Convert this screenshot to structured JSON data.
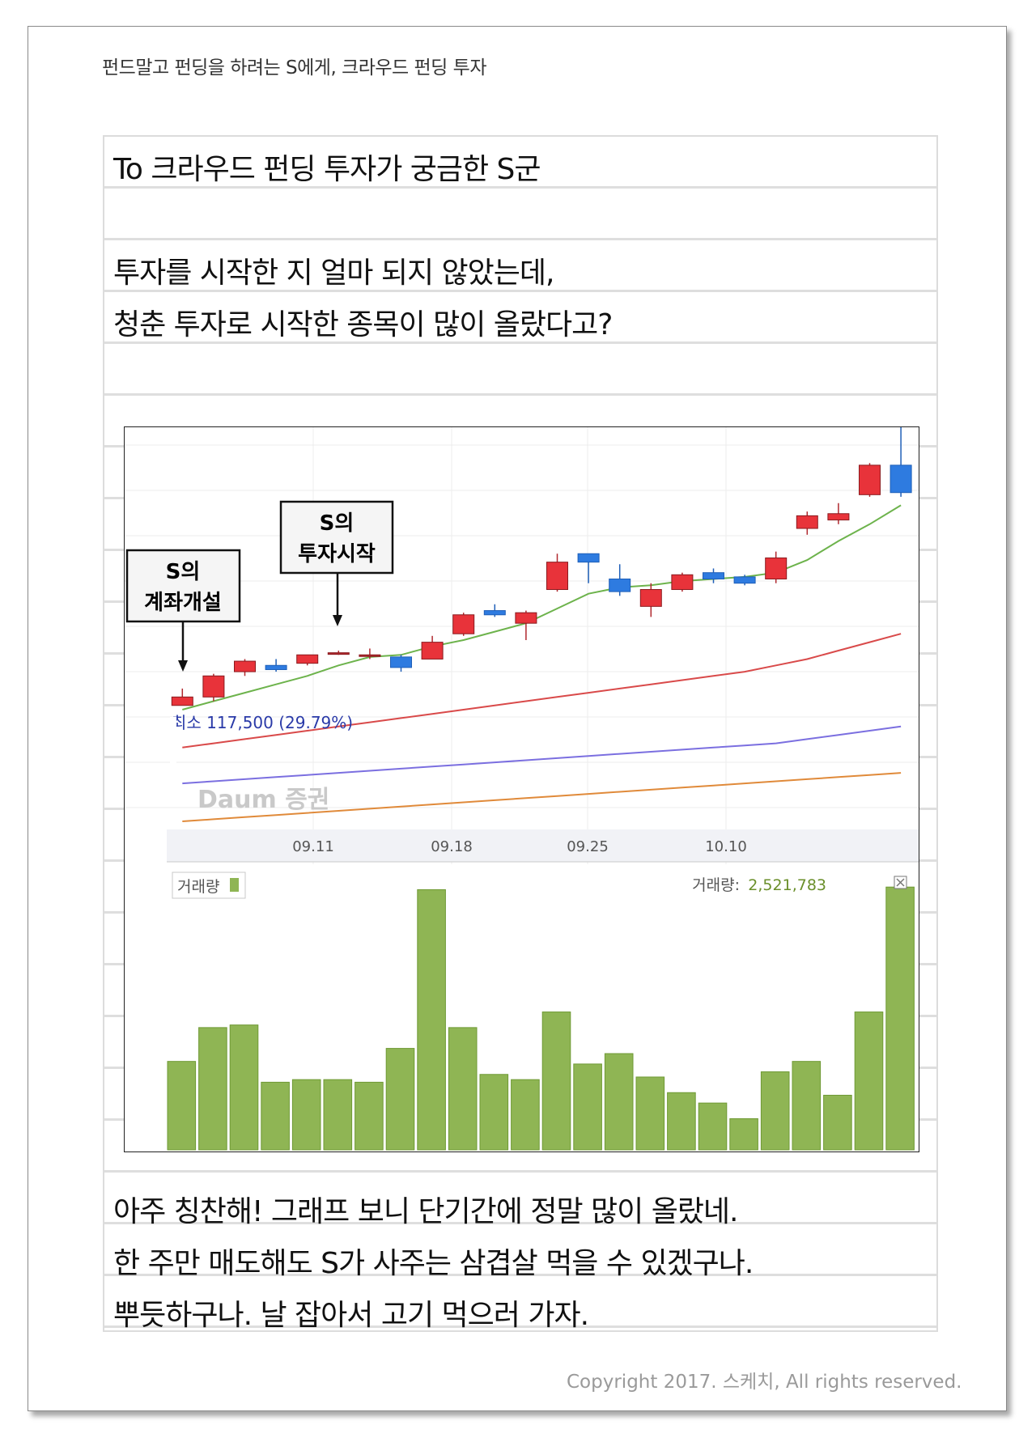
{
  "header": {
    "title": "펀드말고 펀딩을 하려는 S에게, 크라우드 펀딩 투자"
  },
  "letter": {
    "lines": [
      "To 크라우드 펀딩 투자가 궁금한 S군",
      "투자를 시작한 지 얼마 되지 않았는데,",
      "청춘 투자로 시작한 종목이 많이 올랐다고?",
      "아주 칭찬해! 그래프 보니 단기간에 정말 많이 올랐네.",
      "한 주만 매도해도 S가 사주는 삼겹살 먹을 수 있겠구나.",
      "뿌듯하구나. 날 잡아서 고기 먹으러 가자."
    ]
  },
  "chart": {
    "callouts": {
      "account_open": [
        "S의",
        "계좌개설"
      ],
      "invest_start": [
        "S의",
        "투자시작"
      ]
    },
    "low_label": "최소 117,500 (29.79%)",
    "watermark": "Daum 증권",
    "volume_legend": "거래량",
    "volume_readout_label": "거래량:",
    "volume_readout_value": "2,521,783",
    "colors": {
      "up": "#e8333a",
      "down": "#2e7be0",
      "volume": "#8fb554",
      "ma5": "#6db34c",
      "ma20": "#d94a4a",
      "ma60": "#7b6fe0",
      "ma120": "#e08a3a"
    }
  },
  "chart_data": {
    "type": "candlestick",
    "x_tick_labels": [
      "09.11",
      "09.18",
      "09.25",
      "10.10"
    ],
    "candles": [
      {
        "o": 100,
        "c": 104,
        "h": 108,
        "l": 100,
        "dir": "up"
      },
      {
        "o": 104,
        "c": 114,
        "h": 115,
        "l": 102,
        "dir": "up"
      },
      {
        "o": 116,
        "c": 121,
        "h": 122,
        "l": 114,
        "dir": "up"
      },
      {
        "o": 119,
        "c": 117,
        "h": 122,
        "l": 116,
        "dir": "down"
      },
      {
        "o": 120,
        "c": 124,
        "h": 124,
        "l": 119,
        "dir": "up"
      },
      {
        "o": 125,
        "c": 125,
        "h": 126,
        "l": 124,
        "dir": "doji"
      },
      {
        "o": 124,
        "c": 124,
        "h": 127,
        "l": 122,
        "dir": "doji"
      },
      {
        "o": 123,
        "c": 118,
        "h": 124,
        "l": 116,
        "dir": "down"
      },
      {
        "o": 122,
        "c": 130,
        "h": 133,
        "l": 122,
        "dir": "up"
      },
      {
        "o": 134,
        "c": 143,
        "h": 144,
        "l": 133,
        "dir": "up"
      },
      {
        "o": 145,
        "c": 143,
        "h": 148,
        "l": 142,
        "dir": "down"
      },
      {
        "o": 139,
        "c": 144,
        "h": 145,
        "l": 131,
        "dir": "up"
      },
      {
        "o": 155,
        "c": 168,
        "h": 172,
        "l": 154,
        "dir": "up"
      },
      {
        "o": 172,
        "c": 168,
        "h": 172,
        "l": 158,
        "dir": "down"
      },
      {
        "o": 160,
        "c": 154,
        "h": 167,
        "l": 152,
        "dir": "down"
      },
      {
        "o": 147,
        "c": 155,
        "h": 158,
        "l": 142,
        "dir": "up"
      },
      {
        "o": 155,
        "c": 162,
        "h": 163,
        "l": 154,
        "dir": "up"
      },
      {
        "o": 163,
        "c": 160,
        "h": 165,
        "l": 158,
        "dir": "down"
      },
      {
        "o": 161,
        "c": 158,
        "h": 162,
        "l": 157,
        "dir": "down"
      },
      {
        "o": 160,
        "c": 170,
        "h": 173,
        "l": 158,
        "dir": "up"
      },
      {
        "o": 184,
        "c": 190,
        "h": 192,
        "l": 181,
        "dir": "up"
      },
      {
        "o": 188,
        "c": 191,
        "h": 196,
        "l": 186,
        "dir": "up"
      },
      {
        "o": 200,
        "c": 214,
        "h": 215,
        "l": 199,
        "dir": "up"
      },
      {
        "o": 214,
        "c": 201,
        "h": 232,
        "l": 199,
        "dir": "down"
      }
    ],
    "ma_lines": {
      "ma5": [
        98,
        102,
        106,
        110,
        114,
        119,
        123,
        124,
        128,
        131,
        135,
        139,
        146,
        153,
        156,
        157,
        159,
        160,
        161,
        163,
        169,
        178,
        186,
        195
      ],
      "ma20": [
        80,
        82,
        84,
        86,
        88,
        90,
        92,
        94,
        96,
        98,
        100,
        102,
        104,
        106,
        108,
        110,
        112,
        114,
        116,
        119,
        122,
        126,
        130,
        134
      ],
      "ma60": [
        63,
        64,
        65,
        66,
        67,
        68,
        69,
        70,
        71,
        72,
        73,
        74,
        75,
        76,
        77,
        78,
        79,
        80,
        81,
        82,
        84,
        86,
        88,
        90
      ],
      "ma120": [
        45,
        46,
        47,
        48,
        49,
        50,
        51,
        52,
        53,
        54,
        55,
        56,
        57,
        58,
        59,
        60,
        61,
        62,
        63,
        64,
        65,
        66,
        67,
        68
      ]
    },
    "volume": [
      34,
      47,
      48,
      26,
      27,
      27,
      26,
      39,
      100,
      47,
      29,
      27,
      53,
      33,
      37,
      28,
      22,
      18,
      12,
      30,
      34,
      21,
      53,
      101
    ],
    "price_range": [
      40,
      232
    ],
    "volume_range": [
      0,
      102
    ]
  }
}
